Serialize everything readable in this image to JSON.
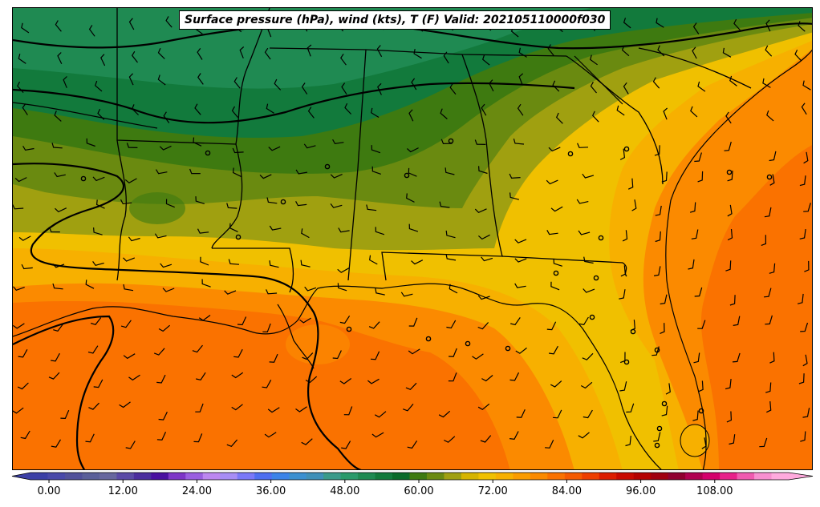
{
  "title": "Surface pressure (hPa), wind (kts), T (F) Valid: 202105110000f030",
  "colorbar": {
    "tick_labels": [
      "0.00",
      "12.00",
      "24.00",
      "36.00",
      "48.00",
      "60.00",
      "72.00",
      "84.00",
      "96.00",
      "108.00"
    ],
    "tick_values": [
      0,
      12,
      24,
      36,
      48,
      60,
      72,
      84,
      96,
      108
    ],
    "min": -3,
    "max": 120,
    "step": 3,
    "extend": "both",
    "colors": [
      "#3b3fa6",
      "#4848a9",
      "#50509a",
      "#5a5f99",
      "#67679e",
      "#5a4aa6",
      "#4b2d9e",
      "#4a10a0",
      "#7d35c7",
      "#9a5ee0",
      "#bc86f0",
      "#a78df5",
      "#7a78f8",
      "#4e6ef0",
      "#3b83e8",
      "#3a8fd0",
      "#3e8fb8",
      "#3a9a8a",
      "#2a9a6a",
      "#1f8a52",
      "#127a3c",
      "#0a6a2a",
      "#3e7a10",
      "#6a8a10",
      "#a0a010",
      "#d6b400",
      "#f0c000",
      "#f7b000",
      "#fa9c00",
      "#fb8a00",
      "#fa7200",
      "#f55a00",
      "#ee3e00",
      "#dc1c00",
      "#c80800",
      "#b40000",
      "#a00010",
      "#8f0030",
      "#b00050",
      "#d4006c",
      "#e8208a",
      "#f05ab0",
      "#f88fd0",
      "#ffaadd"
    ]
  },
  "map": {
    "field": "temperature_F",
    "units": {
      "pressure": "hPa",
      "wind": "kts",
      "temperature": "F"
    },
    "valid": "202105110000",
    "forecast_hour": "f030"
  }
}
